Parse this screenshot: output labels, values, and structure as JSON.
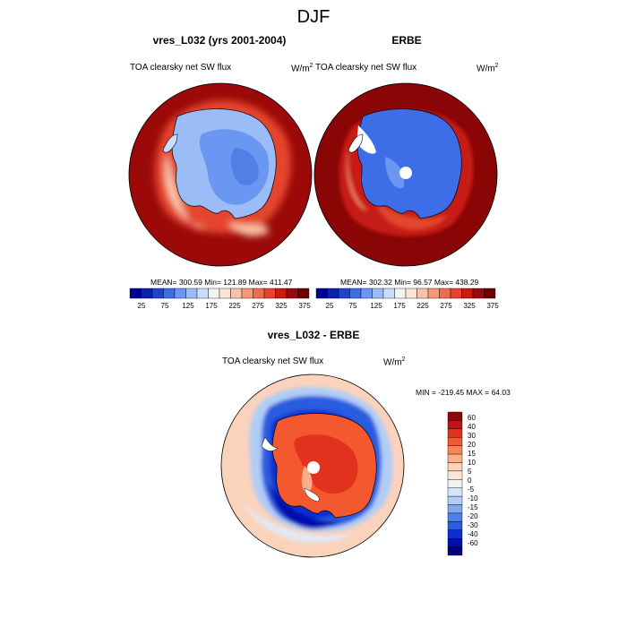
{
  "title": "DJF",
  "panels": [
    {
      "title": "vres_L032 (yrs 2001-2004)",
      "left_label": "TOA clearsky net SW flux",
      "unit": "W/m",
      "unit_sup": "2",
      "stats": "MEAN= 300.59  Min= 121.89  Max= 411.47"
    },
    {
      "title": "ERBE",
      "left_label": "TOA clearsky net SW flux",
      "unit": "W/m",
      "unit_sup": "2",
      "stats": "MEAN= 302.32  Min=  96.57  Max= 438.29"
    }
  ],
  "colorbar": {
    "colors": [
      "#00008f",
      "#0c1fb0",
      "#1f45d0",
      "#3d6ee8",
      "#6a97f2",
      "#9bbcf7",
      "#cadcfb",
      "#f3f3f3",
      "#fde3d3",
      "#fbc2a6",
      "#f6997a",
      "#ef6d4f",
      "#e4442e",
      "#c71a12",
      "#9b0a08",
      "#6e0000"
    ],
    "labels": [
      "25",
      "75",
      "125",
      "175",
      "225",
      "275",
      "325",
      "375"
    ]
  },
  "diff": {
    "title": "vres_L032 - ERBE",
    "left_label": "TOA clearsky net SW flux",
    "unit": "W/m",
    "unit_sup": "2",
    "stats": "MIN = -219.45 MAX =  64.03",
    "colors": [
      "#8a0a0a",
      "#c01414",
      "#e2321e",
      "#f4582e",
      "#fb8456",
      "#fdae88",
      "#fdd2b8",
      "#fbe7da",
      "#f2f2f2",
      "#d6e4fa",
      "#b0cdf6",
      "#7fa9ef",
      "#5080e6",
      "#2a5be0",
      "#0d2fd0",
      "#0010b0",
      "#000080"
    ],
    "labels": [
      "60",
      "40",
      "30",
      "20",
      "15",
      "10",
      "5",
      "0",
      "-5",
      "-10",
      "-15",
      "-20",
      "-30",
      "-40",
      "-60"
    ]
  }
}
